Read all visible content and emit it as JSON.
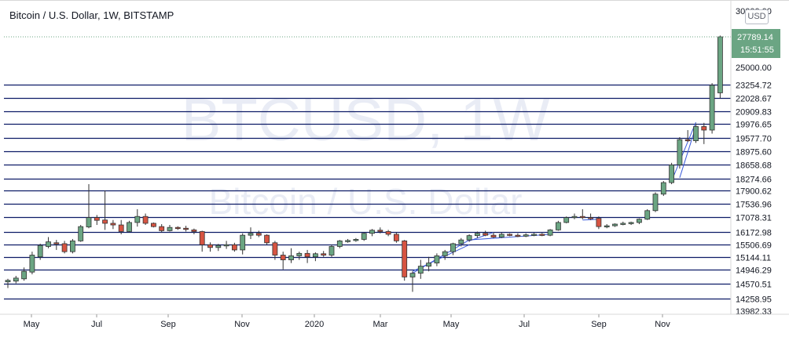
{
  "header": {
    "title": "Bitcoin / U.S. Dollar, 1W, BITSTAMP",
    "currency": "USD"
  },
  "watermark": {
    "symbol": "BTCUSD, 1W",
    "description": "Bitcoin / U.S. Dollar"
  },
  "price_scale": {
    "top_label": "30000.00",
    "labels": [
      "25000.00"
    ],
    "last_price": "27789.14",
    "countdown": "15:51:55",
    "bottom_label": "13982.33"
  },
  "colors": {
    "up": "#6ba583",
    "down": "#d75442",
    "level_line": "#0d1b66",
    "last_price_bg": "#6ba583",
    "drawing": "#3b5bdb",
    "watermark": "#e8ebf5"
  },
  "horizontal_levels": [
    23254.72,
    22028.67,
    20909.83,
    19976.65,
    19577.7,
    18975.6,
    18658.68,
    18274.66,
    17900.62,
    17536.96,
    17078.31,
    16172.98,
    15506.69,
    15144.11,
    14946.29,
    14570.51,
    14258.95
  ],
  "chart_data": {
    "type": "candlestick",
    "title": "Bitcoin / U.S. Dollar, 1W, BITSTAMP",
    "x_labels": [
      "May",
      "Jul",
      "Sep",
      "Nov",
      "2020",
      "Mar",
      "May",
      "Jul",
      "Sep",
      "Nov"
    ],
    "note": "Weekly candles from late April 2019 to late December 2020; y values in chart price units (non-linear/log display scale).",
    "ylim": [
      13982.33,
      30000
    ],
    "last_price": 27789.14,
    "candles": [
      {
        "o": 14620,
        "h": 14700,
        "l": 14480,
        "c": 14660
      },
      {
        "o": 14640,
        "h": 14780,
        "l": 14580,
        "c": 14720
      },
      {
        "o": 14700,
        "h": 14980,
        "l": 14650,
        "c": 14900
      },
      {
        "o": 14880,
        "h": 15300,
        "l": 14820,
        "c": 15200
      },
      {
        "o": 15150,
        "h": 15550,
        "l": 15100,
        "c": 15480
      },
      {
        "o": 15450,
        "h": 15900,
        "l": 15400,
        "c": 15650
      },
      {
        "o": 15600,
        "h": 15750,
        "l": 15350,
        "c": 15550
      },
      {
        "o": 15550,
        "h": 15700,
        "l": 15250,
        "c": 15300
      },
      {
        "o": 15300,
        "h": 15800,
        "l": 15250,
        "c": 15700
      },
      {
        "o": 15700,
        "h": 16600,
        "l": 15650,
        "c": 16500
      },
      {
        "o": 16480,
        "h": 18100,
        "l": 16400,
        "c": 17050
      },
      {
        "o": 17050,
        "h": 17150,
        "l": 16600,
        "c": 16880
      },
      {
        "o": 16900,
        "h": 17900,
        "l": 16300,
        "c": 16700
      },
      {
        "o": 16700,
        "h": 16900,
        "l": 16350,
        "c": 16600
      },
      {
        "o": 16600,
        "h": 16900,
        "l": 16050,
        "c": 16200
      },
      {
        "o": 16200,
        "h": 16850,
        "l": 16150,
        "c": 16750
      },
      {
        "o": 16750,
        "h": 17350,
        "l": 16500,
        "c": 17100
      },
      {
        "o": 17100,
        "h": 17200,
        "l": 16600,
        "c": 16700
      },
      {
        "o": 16700,
        "h": 16750,
        "l": 16450,
        "c": 16500
      },
      {
        "o": 16500,
        "h": 16650,
        "l": 16150,
        "c": 16250
      },
      {
        "o": 16250,
        "h": 16600,
        "l": 16200,
        "c": 16450
      },
      {
        "o": 16450,
        "h": 16520,
        "l": 16300,
        "c": 16420
      },
      {
        "o": 16400,
        "h": 16550,
        "l": 16200,
        "c": 16330
      },
      {
        "o": 16300,
        "h": 16380,
        "l": 16050,
        "c": 16200
      },
      {
        "o": 16200,
        "h": 16250,
        "l": 15300,
        "c": 15500
      },
      {
        "o": 15500,
        "h": 15620,
        "l": 15300,
        "c": 15420
      },
      {
        "o": 15420,
        "h": 15540,
        "l": 15320,
        "c": 15480
      },
      {
        "o": 15480,
        "h": 15700,
        "l": 15380,
        "c": 15500
      },
      {
        "o": 15500,
        "h": 15600,
        "l": 15300,
        "c": 15350
      },
      {
        "o": 15350,
        "h": 16100,
        "l": 15220,
        "c": 16000
      },
      {
        "o": 16000,
        "h": 16450,
        "l": 15800,
        "c": 16100
      },
      {
        "o": 16100,
        "h": 16250,
        "l": 15900,
        "c": 16000
      },
      {
        "o": 16000,
        "h": 16050,
        "l": 15500,
        "c": 15600
      },
      {
        "o": 15600,
        "h": 15700,
        "l": 15100,
        "c": 15200
      },
      {
        "o": 15200,
        "h": 15300,
        "l": 14950,
        "c": 15100
      },
      {
        "o": 15100,
        "h": 15400,
        "l": 15050,
        "c": 15180
      },
      {
        "o": 15180,
        "h": 15300,
        "l": 15100,
        "c": 15250
      },
      {
        "o": 15250,
        "h": 15350,
        "l": 15050,
        "c": 15150
      },
      {
        "o": 15150,
        "h": 15280,
        "l": 15080,
        "c": 15240
      },
      {
        "o": 15240,
        "h": 15320,
        "l": 15150,
        "c": 15200
      },
      {
        "o": 15200,
        "h": 15500,
        "l": 15150,
        "c": 15450
      },
      {
        "o": 15450,
        "h": 15750,
        "l": 15400,
        "c": 15700
      },
      {
        "o": 15700,
        "h": 15800,
        "l": 15600,
        "c": 15720
      },
      {
        "o": 15720,
        "h": 15850,
        "l": 15650,
        "c": 15780
      },
      {
        "o": 15780,
        "h": 16150,
        "l": 15700,
        "c": 16100
      },
      {
        "o": 16100,
        "h": 16350,
        "l": 15950,
        "c": 16280
      },
      {
        "o": 16280,
        "h": 16450,
        "l": 16100,
        "c": 16200
      },
      {
        "o": 16200,
        "h": 16300,
        "l": 15950,
        "c": 16050
      },
      {
        "o": 16050,
        "h": 16150,
        "l": 15600,
        "c": 15700
      },
      {
        "o": 15700,
        "h": 15750,
        "l": 14650,
        "c": 14750
      },
      {
        "o": 14750,
        "h": 14900,
        "l": 14400,
        "c": 14850
      },
      {
        "o": 14850,
        "h": 15100,
        "l": 14700,
        "c": 15000
      },
      {
        "o": 15000,
        "h": 15150,
        "l": 14900,
        "c": 15050
      },
      {
        "o": 15050,
        "h": 15250,
        "l": 15000,
        "c": 15180
      },
      {
        "o": 15180,
        "h": 15350,
        "l": 15100,
        "c": 15300
      },
      {
        "o": 15300,
        "h": 15600,
        "l": 15200,
        "c": 15550
      },
      {
        "o": 15550,
        "h": 15850,
        "l": 15450,
        "c": 15750
      },
      {
        "o": 15750,
        "h": 16050,
        "l": 15650,
        "c": 15980
      },
      {
        "o": 15980,
        "h": 16200,
        "l": 15850,
        "c": 16100
      },
      {
        "o": 16100,
        "h": 16250,
        "l": 15950,
        "c": 16000
      },
      {
        "o": 16000,
        "h": 16150,
        "l": 15850,
        "c": 15900
      },
      {
        "o": 15900,
        "h": 16150,
        "l": 15850,
        "c": 16050
      },
      {
        "o": 16050,
        "h": 16100,
        "l": 15950,
        "c": 16000
      },
      {
        "o": 16000,
        "h": 16100,
        "l": 15900,
        "c": 15950
      },
      {
        "o": 15950,
        "h": 16100,
        "l": 15900,
        "c": 16020
      },
      {
        "o": 16020,
        "h": 16120,
        "l": 15950,
        "c": 16050
      },
      {
        "o": 16050,
        "h": 16120,
        "l": 15950,
        "c": 16000
      },
      {
        "o": 16000,
        "h": 16350,
        "l": 15950,
        "c": 16300
      },
      {
        "o": 16300,
        "h": 16850,
        "l": 16250,
        "c": 16750
      },
      {
        "o": 16750,
        "h": 17100,
        "l": 16700,
        "c": 17050
      },
      {
        "o": 17050,
        "h": 17200,
        "l": 16950,
        "c": 17100
      },
      {
        "o": 17100,
        "h": 17350,
        "l": 16950,
        "c": 17050
      },
      {
        "o": 17050,
        "h": 17200,
        "l": 16900,
        "c": 17000
      },
      {
        "o": 17000,
        "h": 17100,
        "l": 16350,
        "c": 16500
      },
      {
        "o": 16500,
        "h": 16650,
        "l": 16400,
        "c": 16550
      },
      {
        "o": 16550,
        "h": 16700,
        "l": 16480,
        "c": 16650
      },
      {
        "o": 16650,
        "h": 16800,
        "l": 16580,
        "c": 16700
      },
      {
        "o": 16700,
        "h": 16800,
        "l": 16600,
        "c": 16750
      },
      {
        "o": 16750,
        "h": 17000,
        "l": 16650,
        "c": 16950
      },
      {
        "o": 16950,
        "h": 17350,
        "l": 16900,
        "c": 17300
      },
      {
        "o": 17300,
        "h": 17850,
        "l": 17250,
        "c": 17800
      },
      {
        "o": 17800,
        "h": 18200,
        "l": 17750,
        "c": 18150
      },
      {
        "o": 18150,
        "h": 18700,
        "l": 18100,
        "c": 18650
      },
      {
        "o": 18650,
        "h": 19600,
        "l": 18550,
        "c": 19500
      },
      {
        "o": 19500,
        "h": 19800,
        "l": 19400,
        "c": 19450
      },
      {
        "o": 19450,
        "h": 20000,
        "l": 19350,
        "c": 19900
      },
      {
        "o": 19900,
        "h": 20050,
        "l": 19300,
        "c": 19800
      },
      {
        "o": 19800,
        "h": 23400,
        "l": 19700,
        "c": 23200
      },
      {
        "o": 22500,
        "h": 27900,
        "l": 22000,
        "c": 27789.14
      }
    ]
  }
}
